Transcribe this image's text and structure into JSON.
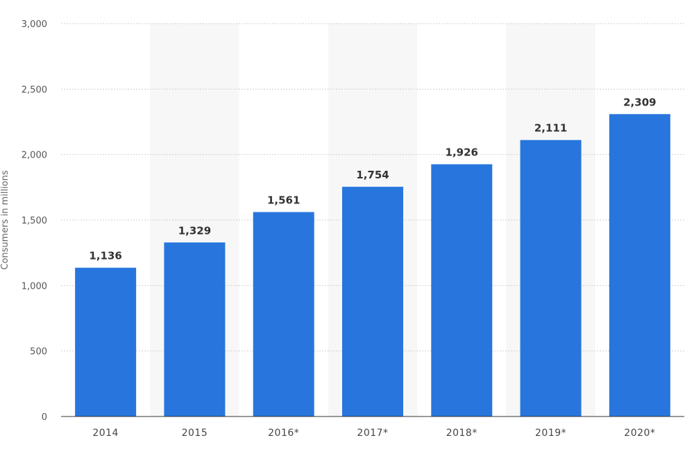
{
  "chart_data": {
    "type": "bar",
    "categories": [
      "2014",
      "2015",
      "2016*",
      "2017*",
      "2018*",
      "2019*",
      "2020*"
    ],
    "values": [
      1136,
      1329,
      1561,
      1754,
      1926,
      2111,
      2309
    ],
    "data_labels": [
      "1,136",
      "1,329",
      "1,561",
      "1,754",
      "1,926",
      "2,111",
      "2,309"
    ],
    "title": "",
    "xlabel": "",
    "ylabel": "Consumers in millions",
    "ylim": [
      0,
      3000
    ],
    "yticks": [
      0,
      500,
      1000,
      1500,
      2000,
      2500,
      3000
    ],
    "ytick_labels": [
      "0",
      "500",
      "1,000",
      "1,500",
      "2,000",
      "2,500",
      "3,000"
    ],
    "grid": true,
    "bar_color": "#2876dd",
    "band_color": "#f7f7f7",
    "gridline_color": "#cfcfcf",
    "axis_color": "#333333"
  }
}
